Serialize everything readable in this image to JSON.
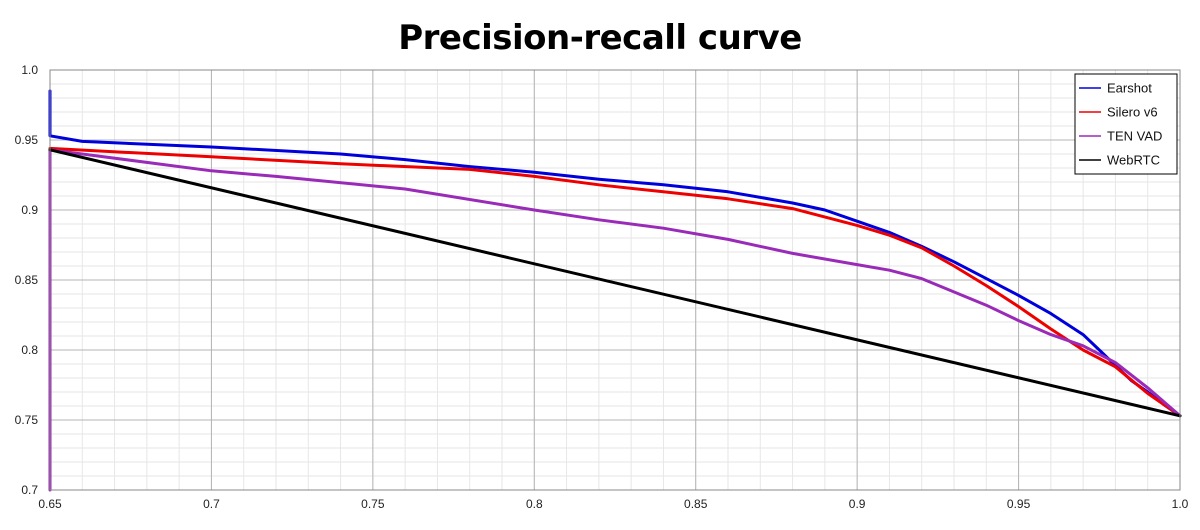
{
  "chart_data": {
    "type": "line",
    "title": "Precision-recall curve",
    "xlabel": "",
    "ylabel": "",
    "xlim": [
      0.65,
      1.0
    ],
    "ylim": [
      0.7,
      1.0
    ],
    "x_ticks": [
      "0.65",
      "0.7",
      "0.75",
      "0.8",
      "0.85",
      "0.9",
      "0.95",
      "1.0"
    ],
    "y_ticks": [
      "0.7",
      "0.75",
      "0.8",
      "0.85",
      "0.9",
      "0.95",
      "1.0"
    ],
    "grid": true,
    "legend_position": "top-right",
    "series": [
      {
        "name": "Earshot",
        "color": "#0000dd",
        "x": [
          0.65,
          0.65,
          0.66,
          0.7,
          0.74,
          0.76,
          0.78,
          0.8,
          0.82,
          0.84,
          0.86,
          0.87,
          0.88,
          0.89,
          0.9,
          0.91,
          0.92,
          0.93,
          0.94,
          0.95,
          0.96,
          0.97,
          0.975,
          0.98,
          0.985,
          0.99,
          0.995,
          1.0
        ],
        "y": [
          0.985,
          0.953,
          0.949,
          0.945,
          0.94,
          0.936,
          0.931,
          0.927,
          0.922,
          0.918,
          0.913,
          0.909,
          0.905,
          0.9,
          0.892,
          0.884,
          0.874,
          0.863,
          0.851,
          0.839,
          0.826,
          0.811,
          0.8,
          0.789,
          0.778,
          0.77,
          0.761,
          0.753
        ]
      },
      {
        "name": "Silero v6",
        "color": "#ee0000",
        "x": [
          0.65,
          0.7,
          0.74,
          0.78,
          0.8,
          0.82,
          0.84,
          0.86,
          0.88,
          0.9,
          0.91,
          0.92,
          0.93,
          0.94,
          0.95,
          0.96,
          0.97,
          0.98,
          0.99,
          1.0
        ],
        "y": [
          0.944,
          0.938,
          0.933,
          0.929,
          0.924,
          0.918,
          0.913,
          0.908,
          0.901,
          0.889,
          0.882,
          0.873,
          0.86,
          0.846,
          0.831,
          0.815,
          0.8,
          0.788,
          0.769,
          0.753
        ]
      },
      {
        "name": "TEN VAD",
        "color": "#9a2bb8",
        "x": [
          0.65,
          0.65,
          0.7,
          0.72,
          0.76,
          0.8,
          0.82,
          0.84,
          0.86,
          0.88,
          0.9,
          0.91,
          0.92,
          0.94,
          0.95,
          0.96,
          0.97,
          0.98,
          0.99,
          1.0
        ],
        "y": [
          0.7,
          0.943,
          0.928,
          0.924,
          0.915,
          0.9,
          0.893,
          0.887,
          0.879,
          0.869,
          0.861,
          0.857,
          0.851,
          0.832,
          0.821,
          0.811,
          0.803,
          0.791,
          0.773,
          0.753
        ]
      },
      {
        "name": "WebRTC",
        "color": "#000000",
        "x": [
          0.65,
          1.0
        ],
        "y": [
          0.943,
          0.753
        ]
      }
    ]
  }
}
